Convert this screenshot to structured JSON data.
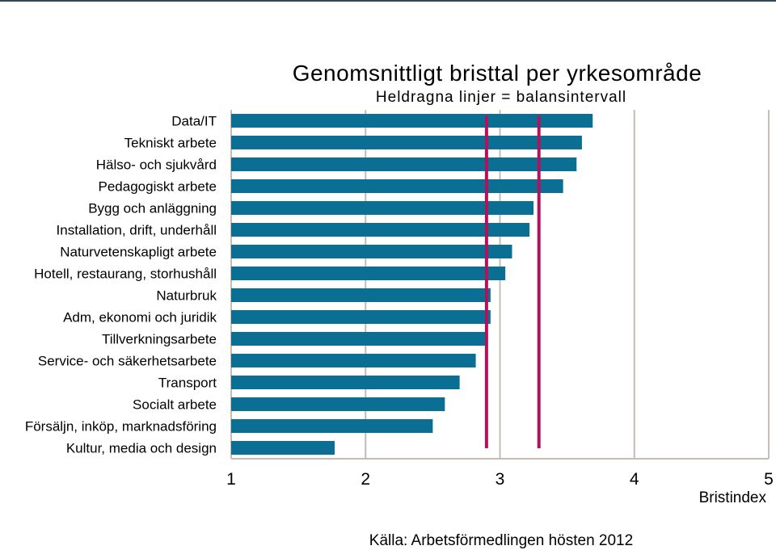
{
  "chart_data": {
    "type": "bar",
    "orientation": "horizontal",
    "title": "Genomsnittligt bristtal per yrkesområde",
    "subtitle": "Heldragna linjer = balansintervall",
    "categories": [
      "Data/IT",
      "Tekniskt arbete",
      "Hälso- och sjukvård",
      "Pedagogiskt arbete",
      "Bygg och anläggning",
      "Installation, drift, underhåll",
      "Naturvetenskapligt arbete",
      "Hotell, restaurang, storhushåll",
      "Naturbruk",
      "Adm, ekonomi och juridik",
      "Tillverkningsarbete",
      "Service- och säkerhetsarbete",
      "Transport",
      "Socialt arbete",
      "Försäljn, inköp, marknadsföring",
      "Kultur, media och design"
    ],
    "values": [
      3.69,
      3.61,
      3.57,
      3.47,
      3.25,
      3.22,
      3.09,
      3.04,
      2.93,
      2.93,
      2.9,
      2.82,
      2.7,
      2.59,
      2.5,
      1.77
    ],
    "xlabel": "Bristindex",
    "xlim": [
      1,
      5
    ],
    "xticks": [
      "1",
      "2",
      "3",
      "4",
      "5"
    ],
    "balance_interval": [
      2.9,
      3.29
    ],
    "grid": "vertical",
    "colors": {
      "bar": "#0b6f93",
      "balance_line": "#b5115a",
      "grid": "#c6bcb2"
    },
    "source": "Källa: Arbetsförmedlingen hösten 2012"
  }
}
